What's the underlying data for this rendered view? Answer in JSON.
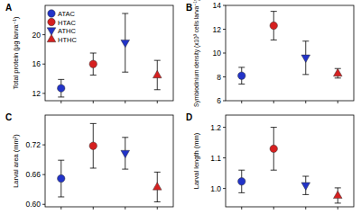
{
  "chart_data": [
    {
      "type": "scatter",
      "title": "A",
      "y_label": "Total protein (µg larva⁻¹)",
      "categories": [
        null,
        null,
        null,
        null
      ],
      "ylim": [
        11,
        24
      ],
      "yticks": [
        12,
        16,
        20
      ],
      "legend": "top-left",
      "series": [
        {
          "name": "ATAC",
          "color": "#2233c8",
          "marker": "circle",
          "values": [
            12.7,
            null,
            null,
            null
          ],
          "errors": [
            1.2,
            null,
            null,
            null
          ]
        },
        {
          "name": "HTAC",
          "color": "#d62020",
          "marker": "circle",
          "values": [
            null,
            16.0,
            null,
            null
          ],
          "errors": [
            null,
            1.5,
            null,
            null
          ]
        },
        {
          "name": "ATHC",
          "color": "#2233c8",
          "marker": "triangle-down",
          "values": [
            null,
            null,
            18.9,
            null
          ],
          "errors": [
            null,
            null,
            4.0,
            null
          ]
        },
        {
          "name": "HTHC",
          "color": "#d62020",
          "marker": "triangle-up",
          "values": [
            null,
            null,
            null,
            14.5
          ],
          "errors": [
            null,
            null,
            null,
            2.0
          ]
        }
      ]
    },
    {
      "type": "scatter",
      "title": "B",
      "y_label": "Symbiodinium density (x10³ cells larva⁻¹)",
      "categories": [
        null,
        null,
        null,
        null
      ],
      "ylim": [
        6,
        14
      ],
      "yticks": [
        6,
        8,
        10,
        12,
        14
      ],
      "series": [
        {
          "color": "#2233c8",
          "marker": "circle",
          "values": [
            8.1,
            null,
            null,
            null
          ],
          "errors": [
            0.7,
            null,
            null,
            null
          ]
        },
        {
          "color": "#d62020",
          "marker": "circle",
          "values": [
            null,
            12.3,
            null,
            null
          ],
          "errors": [
            null,
            1.2,
            null,
            null
          ]
        },
        {
          "color": "#2233c8",
          "marker": "triangle-down",
          "values": [
            null,
            null,
            9.6,
            null
          ],
          "errors": [
            null,
            null,
            1.4,
            null
          ]
        },
        {
          "color": "#d62020",
          "marker": "triangle-up",
          "values": [
            null,
            null,
            null,
            8.3
          ],
          "errors": [
            null,
            null,
            null,
            0.4
          ]
        }
      ]
    },
    {
      "type": "scatter",
      "title": "C",
      "y_label": "Larval area (mm²)",
      "categories": [
        null,
        null,
        null,
        null
      ],
      "ylim": [
        0.595,
        0.78
      ],
      "yticks": [
        {
          "value": 0.6,
          "label": "0.60"
        },
        {
          "value": 0.66,
          "label": "0.66"
        },
        {
          "value": 0.72,
          "label": "0.72"
        }
      ],
      "series": [
        {
          "color": "#2233c8",
          "marker": "circle",
          "values": [
            0.652,
            null,
            null,
            null
          ],
          "errors": [
            0.037,
            null,
            null,
            null
          ]
        },
        {
          "color": "#d62020",
          "marker": "circle",
          "values": [
            null,
            0.718,
            null,
            null
          ],
          "errors": [
            null,
            0.045,
            null,
            null
          ]
        },
        {
          "color": "#2233c8",
          "marker": "triangle-down",
          "values": [
            null,
            null,
            0.703,
            null
          ],
          "errors": [
            null,
            null,
            0.032,
            null
          ]
        },
        {
          "color": "#d62020",
          "marker": "triangle-up",
          "values": [
            null,
            null,
            null,
            0.635
          ],
          "errors": [
            null,
            null,
            null,
            0.03
          ]
        }
      ]
    },
    {
      "type": "scatter",
      "title": "D",
      "y_label": "Larval length (mm)",
      "categories": [
        null,
        null,
        null,
        null
      ],
      "ylim": [
        0.94,
        1.24
      ],
      "yticks": [
        {
          "value": 1.0,
          "label": "1.0"
        },
        1.1,
        1.2
      ],
      "series": [
        {
          "color": "#2233c8",
          "marker": "circle",
          "values": [
            1.023,
            null,
            null,
            null
          ],
          "errors": [
            0.037,
            null,
            null,
            null
          ]
        },
        {
          "color": "#d62020",
          "marker": "circle",
          "values": [
            null,
            1.13,
            null,
            null
          ],
          "errors": [
            null,
            0.07,
            null,
            null
          ]
        },
        {
          "color": "#2233c8",
          "marker": "triangle-down",
          "values": [
            null,
            null,
            1.01,
            null
          ],
          "errors": [
            null,
            null,
            0.03,
            null
          ]
        },
        {
          "color": "#d62020",
          "marker": "triangle-up",
          "values": [
            null,
            null,
            null,
            0.977
          ],
          "errors": [
            null,
            null,
            null,
            0.025
          ]
        }
      ]
    }
  ]
}
